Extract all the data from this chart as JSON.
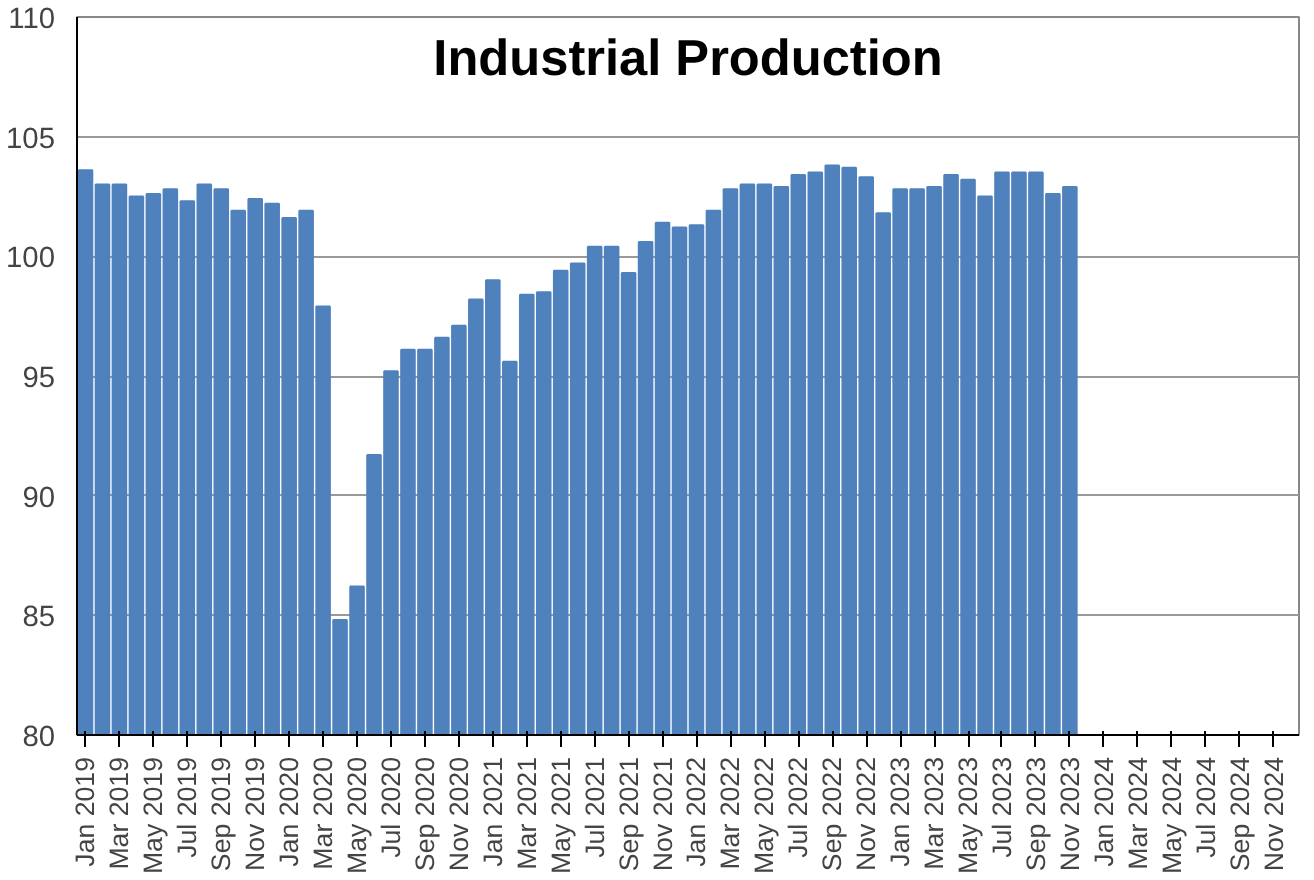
{
  "chart_data": {
    "type": "bar",
    "title": "Industrial Production",
    "categories": [
      "Jan 2019",
      null,
      "Mar 2019",
      null,
      "May 2019",
      null,
      "Jul 2019",
      null,
      "Sep 2019",
      null,
      "Nov 2019",
      null,
      "Jan 2020",
      null,
      "Mar 2020",
      null,
      "May 2020",
      null,
      "Jul 2020",
      null,
      "Sep 2020",
      null,
      "Nov 2020",
      null,
      "Jan 2021",
      null,
      "Mar 2021",
      null,
      "May 2021",
      null,
      "Jul 2021",
      null,
      "Sep 2021",
      null,
      "Nov 2021",
      null,
      "Jan 2022",
      null,
      "Mar 2022",
      null,
      "May 2022",
      null,
      "Jul 2022",
      null,
      "Sep 2022",
      null,
      "Nov 2022",
      null,
      "Jan 2023",
      null,
      "Mar 2023",
      null,
      "May 2023",
      null,
      "Jul 2023",
      null,
      "Sep 2023",
      null,
      "Nov 2023",
      null,
      "Jan 2024",
      null,
      "Mar 2024",
      null,
      "May 2024",
      null,
      "Jul 2024",
      null,
      "Sep 2024",
      null,
      "Nov 2024",
      null
    ],
    "values": [
      103.6,
      103.0,
      103.0,
      102.5,
      102.6,
      102.8,
      102.3,
      103.0,
      102.8,
      101.9,
      102.4,
      102.2,
      101.6,
      101.9,
      97.9,
      84.8,
      86.2,
      91.7,
      95.2,
      96.1,
      96.1,
      96.6,
      97.1,
      98.2,
      99.0,
      95.6,
      98.4,
      98.5,
      99.4,
      99.7,
      100.4,
      100.4,
      99.3,
      100.6,
      101.4,
      101.2,
      101.3,
      101.9,
      102.8,
      103.0,
      103.0,
      102.9,
      103.4,
      103.5,
      103.8,
      103.7,
      103.3,
      101.8,
      102.8,
      102.8,
      102.9,
      103.4,
      103.2,
      102.5,
      103.5,
      103.5,
      103.5,
      102.6,
      102.9,
      null,
      null,
      null,
      null,
      null,
      null,
      null,
      null,
      null,
      null,
      null,
      null,
      null
    ],
    "color": "#4f81bd",
    "ylim": [
      80,
      110
    ],
    "yticks": [
      80,
      85,
      90,
      95,
      100,
      105,
      110
    ],
    "grid": "y"
  }
}
